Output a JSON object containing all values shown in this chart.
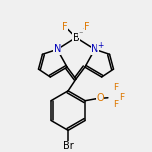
{
  "background_color": "#f0f0f0",
  "bond_color": "#000000",
  "atom_colors": {
    "B": "#000000",
    "N": "#0000bb",
    "F": "#dd7700",
    "O": "#dd7700",
    "Br": "#000000",
    "C": "#000000"
  },
  "fig_size": [
    1.52,
    1.52
  ],
  "dpi": 100
}
